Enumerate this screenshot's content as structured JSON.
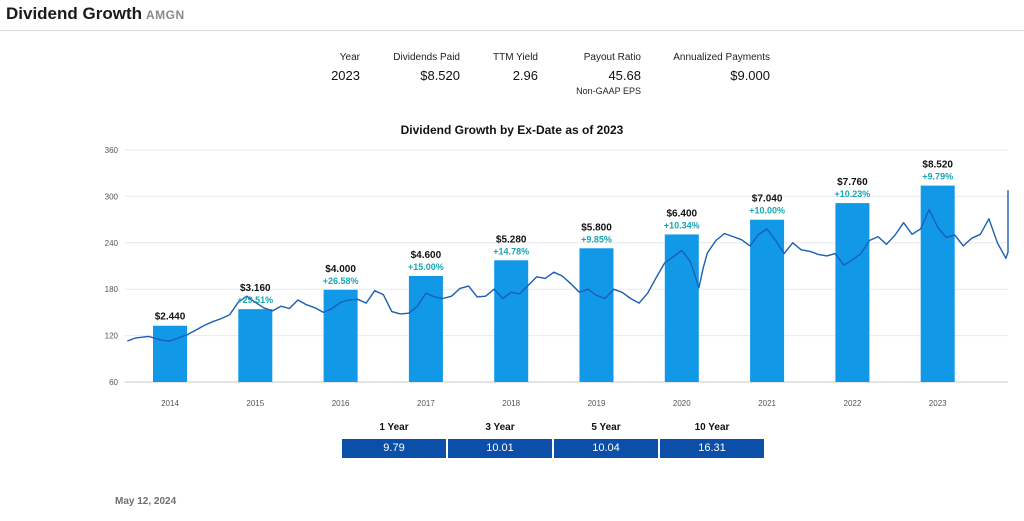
{
  "header": {
    "title": "Dividend Growth",
    "ticker": "AMGN"
  },
  "stats": {
    "year_label": "Year",
    "year_value": "2023",
    "dividends_label": "Dividends Paid",
    "dividends_value": "$8.520",
    "ttm_label": "TTM Yield",
    "ttm_value": "2.96",
    "payout_label": "Payout Ratio",
    "payout_value": "45.68",
    "payout_sub": "Non-GAAP EPS",
    "annualized_label": "Annualized Payments",
    "annualized_value": "$9.000"
  },
  "chart_data": {
    "type": "bar",
    "title": "Dividend Growth by Ex-Date as of 2023",
    "categories": [
      "2014",
      "2015",
      "2016",
      "2017",
      "2018",
      "2019",
      "2020",
      "2021",
      "2022",
      "2023"
    ],
    "values": [
      2.44,
      3.16,
      4.0,
      4.6,
      5.28,
      5.8,
      6.4,
      7.04,
      7.76,
      8.52
    ],
    "value_labels": [
      "$2.440",
      "$3.160",
      "$4.000",
      "$4.600",
      "$5.280",
      "$5.800",
      "$6.400",
      "$7.040",
      "$7.760",
      "$8.520"
    ],
    "growth_labels": [
      "",
      "+29.51%",
      "+26.58%",
      "+15.00%",
      "+14.78%",
      "+9.85%",
      "+10.34%",
      "+10.00%",
      "+10.23%",
      "+9.79%"
    ],
    "yticks": [
      "60",
      "120",
      "180",
      "240",
      "300",
      "360"
    ],
    "ylim": [
      60,
      360
    ],
    "bar_color": "#1199e8",
    "line_color": "#1a5fb4",
    "growth_color": "#15a6b5",
    "grid": true,
    "price_series": {
      "name": "",
      "x": [
        2013.5,
        2013.6,
        2013.75,
        2013.9,
        2014.0,
        2014.1,
        2014.2,
        2014.3,
        2014.4,
        2014.5,
        2014.6,
        2014.7,
        2014.8,
        2014.9,
        2015.0,
        2015.1,
        2015.2,
        2015.3,
        2015.4,
        2015.5,
        2015.6,
        2015.7,
        2015.8,
        2015.9,
        2016.0,
        2016.1,
        2016.2,
        2016.3,
        2016.4,
        2016.5,
        2016.6,
        2016.7,
        2016.8,
        2016.9,
        2017.0,
        2017.1,
        2017.2,
        2017.3,
        2017.4,
        2017.5,
        2017.6,
        2017.7,
        2017.8,
        2017.9,
        2018.0,
        2018.1,
        2018.2,
        2018.3,
        2018.4,
        2018.5,
        2018.6,
        2018.7,
        2018.8,
        2018.9,
        2019.0,
        2019.1,
        2019.2,
        2019.3,
        2019.4,
        2019.5,
        2019.6,
        2019.7,
        2019.8,
        2019.9,
        2020.0,
        2020.1,
        2020.2,
        2020.25,
        2020.3,
        2020.4,
        2020.5,
        2020.6,
        2020.7,
        2020.8,
        2020.9,
        2021.0,
        2021.1,
        2021.2,
        2021.3,
        2021.4,
        2021.5,
        2021.6,
        2021.7,
        2021.8,
        2021.9,
        2022.0,
        2022.1,
        2022.2,
        2022.3,
        2022.4,
        2022.5,
        2022.6,
        2022.7,
        2022.8,
        2022.9,
        2023.0,
        2023.1,
        2023.2,
        2023.3,
        2023.4,
        2023.5,
        2023.6,
        2023.7,
        2023.8,
        2023.9,
        2024.0,
        2024.1,
        2024.2,
        2024.3,
        2024.4,
        2024.45
      ],
      "y": [
        113,
        117,
        119,
        114,
        113,
        117,
        121,
        127,
        133,
        138,
        142,
        147,
        163,
        171,
        163,
        156,
        152,
        158,
        155,
        166,
        160,
        156,
        150,
        155,
        163,
        166,
        167,
        162,
        178,
        173,
        151,
        148,
        149,
        158,
        175,
        170,
        168,
        171,
        181,
        184,
        170,
        171,
        180,
        168,
        176,
        174,
        185,
        196,
        194,
        202,
        197,
        187,
        176,
        180,
        172,
        168,
        180,
        176,
        168,
        162,
        175,
        195,
        214,
        222,
        230,
        216,
        182,
        207,
        227,
        243,
        252,
        248,
        244,
        236,
        251,
        258,
        243,
        226,
        240,
        231,
        229,
        225,
        223,
        226,
        211,
        218,
        226,
        243,
        248,
        238,
        250,
        266,
        251,
        258,
        283,
        260,
        247,
        250,
        236,
        246,
        251,
        271,
        240,
        220,
        228,
        246,
        263,
        276,
        298,
        272,
        308
      ]
    }
  },
  "growth": {
    "y1_label": "1 Year",
    "y1_value": "9.79",
    "y3_label": "3 Year",
    "y3_value": "10.01",
    "y5_label": "5 Year",
    "y5_value": "10.04",
    "y10_label": "10 Year",
    "y10_value": "16.31"
  },
  "footer": {
    "date": "May 12, 2024"
  }
}
